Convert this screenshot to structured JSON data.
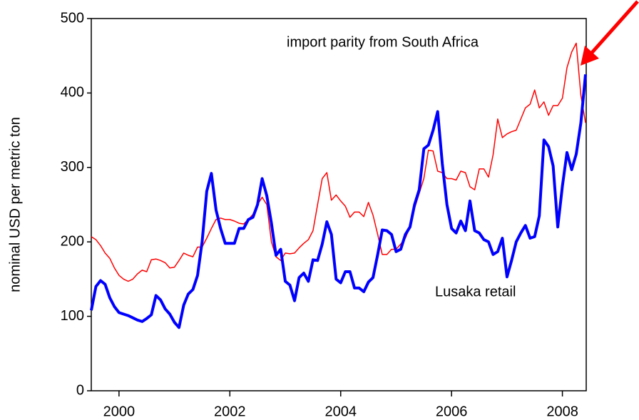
{
  "chart_data": {
    "type": "line",
    "y_label": "nominal USD per metric ton",
    "annotations": [
      "import parity from South Africa",
      "Lusaka retail"
    ],
    "x": [
      1999.5,
      1999.583,
      1999.667,
      1999.75,
      1999.833,
      1999.917,
      2000,
      2000.083,
      2000.167,
      2000.25,
      2000.333,
      2000.417,
      2000.5,
      2000.583,
      2000.667,
      2000.75,
      2000.833,
      2000.917,
      2001,
      2001.083,
      2001.167,
      2001.25,
      2001.333,
      2001.417,
      2001.5,
      2001.583,
      2001.667,
      2001.75,
      2001.833,
      2001.917,
      2002,
      2002.083,
      2002.167,
      2002.25,
      2002.333,
      2002.417,
      2002.5,
      2002.583,
      2002.667,
      2002.75,
      2002.833,
      2002.917,
      2003,
      2003.083,
      2003.167,
      2003.25,
      2003.333,
      2003.417,
      2003.5,
      2003.583,
      2003.667,
      2003.75,
      2003.833,
      2003.917,
      2004,
      2004.083,
      2004.167,
      2004.25,
      2004.333,
      2004.417,
      2004.5,
      2004.583,
      2004.667,
      2004.75,
      2004.833,
      2004.917,
      2005,
      2005.083,
      2005.167,
      2005.25,
      2005.333,
      2005.417,
      2005.5,
      2005.583,
      2005.667,
      2005.75,
      2005.833,
      2005.917,
      2006,
      2006.083,
      2006.167,
      2006.25,
      2006.333,
      2006.417,
      2006.5,
      2006.583,
      2006.667,
      2006.75,
      2006.833,
      2006.917,
      2007,
      2007.083,
      2007.167,
      2007.25,
      2007.333,
      2007.417,
      2007.5,
      2007.583,
      2007.667,
      2007.75,
      2007.833,
      2007.917,
      2008,
      2008.083,
      2008.167,
      2008.25,
      2008.333,
      2008.417
    ],
    "series": [
      {
        "name": "import parity from South Africa",
        "color": "#ff0000",
        "width": 1.5,
        "values": [
          207,
          203,
          195,
          185,
          178,
          165,
          155,
          150,
          147,
          150,
          157,
          162,
          160,
          176,
          177,
          175,
          172,
          165,
          166,
          175,
          185,
          182,
          180,
          193,
          193,
          205,
          218,
          230,
          232,
          230,
          230,
          228,
          225,
          224,
          230,
          237,
          250,
          260,
          250,
          200,
          180,
          175,
          185,
          184,
          185,
          192,
          198,
          203,
          215,
          250,
          285,
          293,
          256,
          263,
          255,
          248,
          233,
          240,
          240,
          234,
          253,
          236,
          210,
          183,
          183,
          190,
          190,
          197,
          205,
          220,
          245,
          265,
          285,
          323,
          322,
          295,
          293,
          285,
          285,
          283,
          295,
          293,
          274,
          270,
          298,
          298,
          287,
          317,
          365,
          340,
          345,
          348,
          350,
          365,
          380,
          385,
          404,
          380,
          388,
          370,
          383,
          383,
          393,
          434,
          455,
          467,
          397,
          360
        ]
      },
      {
        "name": "Lusaka retail",
        "color": "#0000ff",
        "width": 4,
        "values": [
          108,
          140,
          148,
          143,
          125,
          113,
          105,
          103,
          101,
          98,
          95,
          93,
          97,
          102,
          128,
          122,
          110,
          103,
          92,
          85,
          115,
          130,
          136,
          155,
          200,
          268,
          292,
          243,
          218,
          198,
          198,
          198,
          218,
          218,
          230,
          233,
          250,
          285,
          262,
          225,
          182,
          190,
          147,
          142,
          121,
          152,
          158,
          147,
          176,
          175,
          197,
          227,
          210,
          150,
          145,
          160,
          160,
          138,
          138,
          133,
          146,
          152,
          183,
          216,
          215,
          210,
          187,
          190,
          210,
          220,
          250,
          270,
          325,
          330,
          350,
          375,
          305,
          250,
          218,
          212,
          228,
          215,
          255,
          215,
          212,
          203,
          200,
          183,
          187,
          205,
          153,
          175,
          200,
          212,
          222,
          205,
          207,
          235,
          337,
          328,
          302,
          220,
          275,
          320,
          297,
          318,
          360,
          425
        ]
      }
    ],
    "xlim": [
      1999.5,
      2008.43
    ],
    "xticks": [
      2000,
      2002,
      2004,
      2006,
      2008
    ],
    "ylim": [
      0,
      500
    ],
    "yticks": [
      0,
      100,
      200,
      300,
      400,
      500
    ],
    "grid": false
  }
}
